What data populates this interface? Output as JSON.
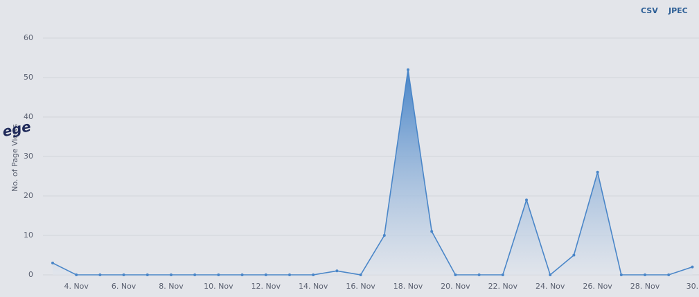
{
  "chart_data": {
    "type": "area",
    "y_axis_label": "No. of Page Views",
    "annotation": "ege",
    "export_links": [
      "CSV",
      "JPEC"
    ],
    "categories": [
      null,
      "4. Nov",
      null,
      "6. Nov",
      null,
      "8. Nov",
      null,
      "10. Nov",
      null,
      "12. Nov",
      null,
      "14. Nov",
      null,
      "16. Nov",
      null,
      "18. Nov",
      null,
      "20. Nov",
      null,
      "22. Nov",
      null,
      "24. Nov",
      null,
      "26. Nov",
      null,
      "28. Nov",
      null,
      "30."
    ],
    "values": [
      3,
      0,
      0,
      0,
      0,
      0,
      0,
      0,
      0,
      0,
      0,
      0,
      1,
      0,
      10,
      52,
      11,
      0,
      0,
      0,
      19,
      0,
      5,
      26,
      0,
      0,
      0,
      2
    ],
    "color": "#4a86c8",
    "ylim": [
      0,
      60
    ],
    "yticks": [
      0,
      10,
      20,
      30,
      40,
      50,
      60
    ],
    "grid": true
  }
}
